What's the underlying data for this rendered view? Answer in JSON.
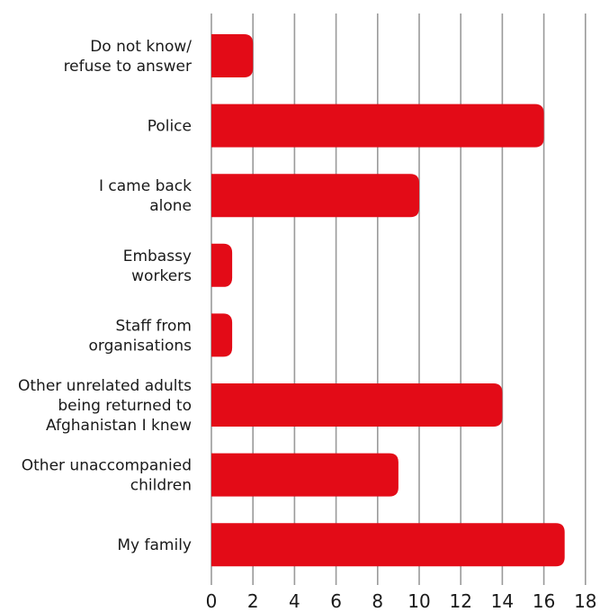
{
  "chart_data": {
    "type": "bar",
    "orientation": "horizontal",
    "title": "",
    "xlabel": "",
    "ylabel": "",
    "xlim": [
      0,
      18
    ],
    "x_ticks": [
      0,
      2,
      4,
      6,
      8,
      10,
      12,
      14,
      16,
      18
    ],
    "grid": "vertical",
    "legend": "none",
    "bar_color": "#e30b17",
    "grid_color": "#9a9a9a",
    "categories": [
      [
        "Do not know/",
        "refuse to answer"
      ],
      [
        "Police"
      ],
      [
        "I came back",
        "alone"
      ],
      [
        "Embassy",
        "workers"
      ],
      [
        "Staff from",
        "organisations"
      ],
      [
        "Other unrelated adults",
        "being returned to",
        "Afghanistan I knew"
      ],
      [
        "Other unaccompanied",
        "children"
      ],
      [
        "My family"
      ]
    ],
    "values": [
      2,
      16,
      10,
      1,
      1,
      14,
      9,
      17
    ]
  }
}
